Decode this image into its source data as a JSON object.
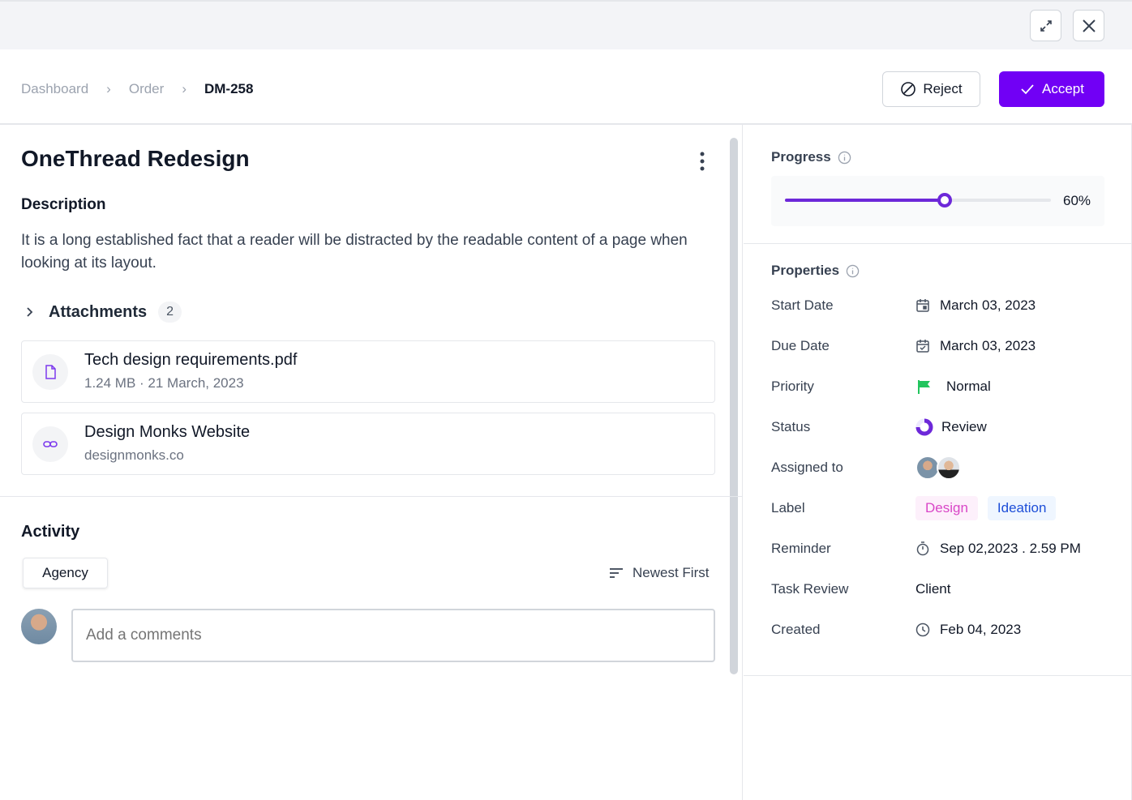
{
  "window": {
    "expand_icon": "expand-icon",
    "close_icon": "close-icon"
  },
  "breadcrumb": [
    "Dashboard",
    "Order",
    "DM-258"
  ],
  "actions": {
    "reject": "Reject",
    "accept": "Accept",
    "accent": "#7100f5"
  },
  "task": {
    "title": "OneThread Redesign",
    "description_title": "Description",
    "description": "It is a long established fact that a reader will be distracted by the readable content of a page when looking at its layout."
  },
  "attachments": {
    "label": "Attachments",
    "count": "2",
    "items": [
      {
        "name": "Tech design requirements.pdf",
        "meta": "1.24 MB · 21 March, 2023",
        "icon": "file-icon"
      },
      {
        "name": "Design Monks Website",
        "meta": "designmonks.co",
        "icon": "link-icon"
      }
    ]
  },
  "activity": {
    "title": "Activity",
    "filter": "Agency",
    "sort": "Newest First",
    "comment_placeholder": "Add a comments"
  },
  "progress": {
    "title": "Progress",
    "value": 60,
    "label": "60%"
  },
  "properties": {
    "title": "Properties",
    "rows": [
      {
        "key": "Start Date",
        "value": "March 03, 2023"
      },
      {
        "key": "Due Date",
        "value": "March 03, 2023"
      },
      {
        "key": "Priority",
        "value": "Normal"
      },
      {
        "key": "Status",
        "value": "Review"
      },
      {
        "key": "Assigned to",
        "value": ""
      },
      {
        "key": "Label",
        "tags": [
          "Design",
          "Ideation"
        ]
      },
      {
        "key": "Reminder",
        "value": "Sep 02,2023 . 2.59 PM"
      },
      {
        "key": "Task Review",
        "value": "Client"
      },
      {
        "key": "Created",
        "value": "Feb 04, 2023"
      }
    ]
  }
}
